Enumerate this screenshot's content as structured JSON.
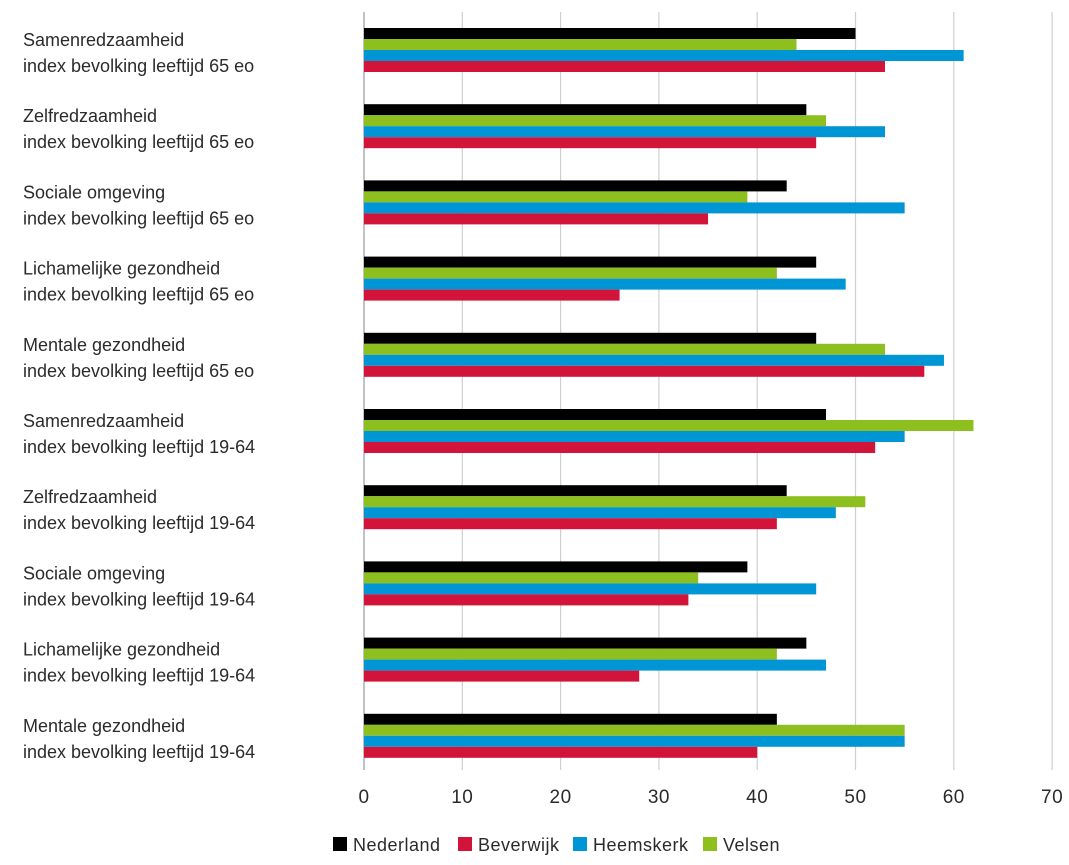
{
  "chart_data": {
    "type": "bar",
    "orientation": "horizontal",
    "categories": [
      [
        "Samenredzaamheid",
        "index bevolking leeftijd 65 eo"
      ],
      [
        "Zelfredzaamheid",
        "index bevolking leeftijd 65 eo"
      ],
      [
        "Sociale omgeving",
        "index bevolking leeftijd 65 eo"
      ],
      [
        "Lichamelijke gezondheid",
        "index bevolking leeftijd 65 eo"
      ],
      [
        "Mentale gezondheid",
        "index bevolking leeftijd 65 eo"
      ],
      [
        "Samenredzaamheid",
        "index bevolking leeftijd 19-64"
      ],
      [
        "Zelfredzaamheid",
        "index bevolking leeftijd 19-64"
      ],
      [
        "Sociale omgeving",
        "index bevolking leeftijd 19-64"
      ],
      [
        "Lichamelijke gezondheid",
        "index bevolking leeftijd 19-64"
      ],
      [
        "Mentale gezondheid",
        "index bevolking leeftijd 19-64"
      ]
    ],
    "series": [
      {
        "name": "Nederland",
        "color": "#000000",
        "values": [
          50,
          45,
          43,
          46,
          46,
          47,
          43,
          39,
          45,
          42
        ]
      },
      {
        "name": "Velsen",
        "color": "#8dbf1e",
        "values": [
          44,
          47,
          39,
          42,
          53,
          62,
          51,
          34,
          42,
          55
        ]
      },
      {
        "name": "Heemskerk",
        "color": "#0096d6",
        "values": [
          61,
          53,
          55,
          49,
          59,
          55,
          48,
          46,
          47,
          55
        ]
      },
      {
        "name": "Beverwijk",
        "color": "#d2143a",
        "values": [
          53,
          46,
          35,
          26,
          57,
          52,
          42,
          33,
          28,
          40
        ]
      }
    ],
    "xlim": [
      0,
      70
    ],
    "xticks": [
      "0",
      "10",
      "20",
      "30",
      "40",
      "50",
      "60",
      "70"
    ],
    "grid": true,
    "legend_position": "bottom",
    "legend_order": [
      "Nederland",
      "Beverwijk",
      "Heemskerk",
      "Velsen"
    ],
    "title": "",
    "xlabel": "",
    "ylabel": ""
  }
}
